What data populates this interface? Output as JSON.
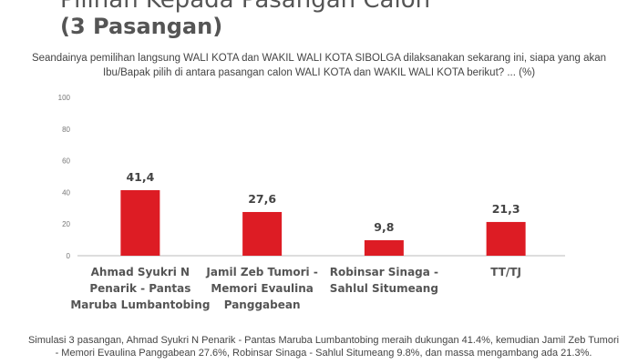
{
  "title_line1": "Pilihan Kepada Pasangan Calon",
  "title_line2": "(3 Pasangan)",
  "question": "Seandainya pemilihan langsung WALI KOTA dan WAKIL WALI KOTA SIBOLGA dilaksanakan sekarang ini, siapa yang akan Ibu/Bapak pilih di antara pasangan calon WALI KOTA dan WAKIL WALI KOTA berikut? ... (%)",
  "note": "Simulasi 3 pasangan, Ahmad Syukri N Penarik - Pantas Maruba Lumbantobing meraih dukungan 41.4%, kemudian Jamil Zeb Tumori - Memori Evaulina Panggabean 27.6%, Robinsar Sinaga - Sahlul Situmeang 9.8%, dan massa mengambang ada 21.3%.",
  "chart_data": {
    "type": "bar",
    "categories": [
      [
        "Ahmad Syukri N",
        "Penarik - Pantas",
        "Maruba Lumbantobing"
      ],
      [
        "Jamil Zeb Tumori -",
        "Memori Evaulina",
        "Panggabean"
      ],
      [
        "Robinsar Sinaga -",
        "Sahlul Situmeang"
      ],
      [
        "TT/TJ"
      ]
    ],
    "values": [
      41.4,
      27.6,
      9.8,
      21.3
    ],
    "data_labels": [
      "41,4",
      "27,6",
      "9,8",
      "21,3"
    ],
    "yticks": [
      0,
      20,
      40,
      60,
      80,
      100
    ],
    "ylim": [
      0,
      100
    ],
    "grid": false,
    "bar_color": "#dd1c24",
    "axis_color": "#bbbbbb"
  }
}
